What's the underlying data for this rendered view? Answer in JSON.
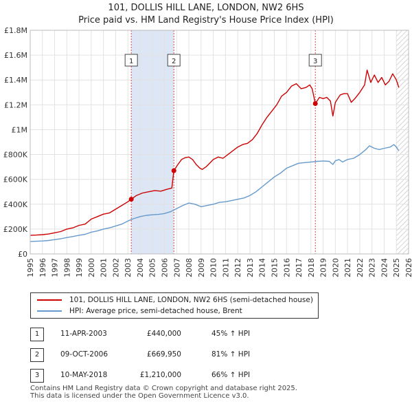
{
  "chart_data": {
    "type": "line",
    "title": "101, DOLLIS HILL LANE, LONDON, NW2 6HS",
    "subtitle": "Price paid vs. HM Land Registry's House Price Index (HPI)",
    "xlabel": "",
    "ylabel": "",
    "xlim": [
      1995,
      2026
    ],
    "ylim": [
      0,
      1800000
    ],
    "y_ticks": [
      {
        "value": 0,
        "label": "£0"
      },
      {
        "value": 200000,
        "label": "£200K"
      },
      {
        "value": 400000,
        "label": "£400K"
      },
      {
        "value": 600000,
        "label": "£600K"
      },
      {
        "value": 800000,
        "label": "£800K"
      },
      {
        "value": 1000000,
        "label": "£1M"
      },
      {
        "value": 1200000,
        "label": "£1.2M"
      },
      {
        "value": 1400000,
        "label": "£1.4M"
      },
      {
        "value": 1600000,
        "label": "£1.6M"
      },
      {
        "value": 1800000,
        "label": "£1.8M"
      }
    ],
    "x_ticks": [
      "1995",
      "1996",
      "1997",
      "1998",
      "1999",
      "2000",
      "2001",
      "2002",
      "2003",
      "2004",
      "2005",
      "2006",
      "2007",
      "2008",
      "2009",
      "2010",
      "2011",
      "2012",
      "2013",
      "2014",
      "2015",
      "2016",
      "2017",
      "2018",
      "2019",
      "2020",
      "2021",
      "2022",
      "2023",
      "2024",
      "2025",
      "2026"
    ],
    "grid": true,
    "shaded_periods": [
      [
        2003.28,
        2006.77
      ]
    ],
    "forecast_from": 2025.0,
    "series": [
      {
        "name": "101, DOLLIS HILL LANE, LONDON, NW2 6HS (semi-detached house)",
        "color": "#cc0000",
        "x": [
          1995.0,
          1995.5,
          1996.0,
          1996.5,
          1997.0,
          1997.5,
          1998.0,
          1998.5,
          1999.0,
          1999.5,
          2000.0,
          2000.5,
          2001.0,
          2001.5,
          2002.0,
          2002.5,
          2003.0,
          2003.28,
          2003.7,
          2004.2,
          2004.7,
          2005.2,
          2005.7,
          2006.2,
          2006.6,
          2006.77,
          2007.1,
          2007.4,
          2007.7,
          2008.0,
          2008.3,
          2008.6,
          2008.9,
          2009.1,
          2009.4,
          2009.7,
          2010.0,
          2010.4,
          2010.8,
          2011.2,
          2011.6,
          2012.0,
          2012.4,
          2012.8,
          2013.2,
          2013.6,
          2014.0,
          2014.4,
          2014.8,
          2015.2,
          2015.6,
          2016.0,
          2016.4,
          2016.8,
          2017.2,
          2017.6,
          2017.9,
          2018.1,
          2018.36,
          2018.7,
          2019.0,
          2019.3,
          2019.6,
          2019.8,
          2020.0,
          2020.2,
          2020.4,
          2020.7,
          2021.0,
          2021.3,
          2021.6,
          2022.0,
          2022.4,
          2022.6,
          2022.9,
          2023.2,
          2023.5,
          2023.8,
          2024.1,
          2024.4,
          2024.7,
          2025.0,
          2025.2
        ],
        "values": [
          150000,
          152000,
          155000,
          160000,
          170000,
          180000,
          200000,
          210000,
          230000,
          240000,
          280000,
          300000,
          320000,
          330000,
          360000,
          390000,
          420000,
          440000,
          470000,
          490000,
          500000,
          510000,
          505000,
          520000,
          530000,
          669950,
          720000,
          760000,
          775000,
          780000,
          760000,
          720000,
          690000,
          680000,
          700000,
          730000,
          760000,
          780000,
          770000,
          800000,
          830000,
          860000,
          880000,
          890000,
          920000,
          970000,
          1040000,
          1100000,
          1150000,
          1200000,
          1270000,
          1300000,
          1350000,
          1370000,
          1330000,
          1340000,
          1360000,
          1330000,
          1210000,
          1260000,
          1250000,
          1260000,
          1230000,
          1110000,
          1220000,
          1250000,
          1280000,
          1290000,
          1290000,
          1220000,
          1250000,
          1300000,
          1360000,
          1480000,
          1380000,
          1440000,
          1380000,
          1420000,
          1360000,
          1390000,
          1450000,
          1400000,
          1340000
        ]
      },
      {
        "name": "HPI: Average price, semi-detached house, Brent",
        "color": "#6699cc",
        "x": [
          1995.0,
          1995.5,
          1996.0,
          1996.5,
          1997.0,
          1997.5,
          1998.0,
          1998.5,
          1999.0,
          1999.5,
          2000.0,
          2000.5,
          2001.0,
          2001.5,
          2002.0,
          2002.5,
          2003.0,
          2003.5,
          2004.0,
          2004.5,
          2005.0,
          2005.5,
          2006.0,
          2006.5,
          2007.0,
          2007.5,
          2008.0,
          2008.5,
          2009.0,
          2009.5,
          2010.0,
          2010.5,
          2011.0,
          2011.5,
          2012.0,
          2012.5,
          2013.0,
          2013.5,
          2014.0,
          2014.5,
          2015.0,
          2015.5,
          2016.0,
          2016.5,
          2017.0,
          2017.5,
          2018.0,
          2018.5,
          2019.0,
          2019.5,
          2019.8,
          2020.0,
          2020.3,
          2020.6,
          2021.0,
          2021.5,
          2022.0,
          2022.5,
          2022.8,
          2023.2,
          2023.6,
          2024.0,
          2024.5,
          2024.8,
          2025.0,
          2025.2
        ],
        "values": [
          100000,
          102000,
          104000,
          108000,
          115000,
          122000,
          132000,
          140000,
          150000,
          158000,
          175000,
          185000,
          200000,
          210000,
          225000,
          240000,
          265000,
          285000,
          300000,
          310000,
          315000,
          318000,
          325000,
          340000,
          365000,
          390000,
          410000,
          400000,
          380000,
          390000,
          400000,
          415000,
          420000,
          430000,
          440000,
          450000,
          470000,
          500000,
          540000,
          580000,
          620000,
          650000,
          690000,
          710000,
          730000,
          735000,
          740000,
          745000,
          748000,
          745000,
          720000,
          750000,
          760000,
          740000,
          760000,
          770000,
          800000,
          840000,
          870000,
          850000,
          840000,
          850000,
          860000,
          880000,
          860000,
          830000
        ]
      }
    ],
    "transactions": [
      {
        "num": "1",
        "x": 2003.28,
        "price": 440000
      },
      {
        "num": "2",
        "x": 2006.77,
        "price": 669950
      },
      {
        "num": "3",
        "x": 2018.36,
        "price": 1210000
      }
    ]
  },
  "legend": {
    "property_label": "101, DOLLIS HILL LANE, LONDON, NW2 6HS (semi-detached house)",
    "hpi_label": "HPI: Average price, semi-detached house, Brent"
  },
  "table": [
    {
      "num": "1",
      "date": "11-APR-2003",
      "price": "£440,000",
      "hpi": "45% ↑ HPI"
    },
    {
      "num": "2",
      "date": "09-OCT-2006",
      "price": "£669,950",
      "hpi": "81% ↑ HPI"
    },
    {
      "num": "3",
      "date": "10-MAY-2018",
      "price": "£1,210,000",
      "hpi": "66% ↑ HPI"
    }
  ],
  "footer": {
    "line1": "Contains HM Land Registry data © Crown copyright and database right 2025.",
    "line2": "This data is licensed under the Open Government Licence v3.0."
  }
}
